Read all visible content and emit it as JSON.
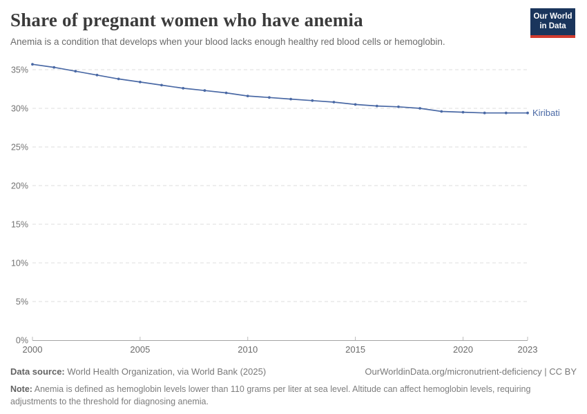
{
  "header": {
    "title": "Share of pregnant women who have anemia",
    "subtitle": "Anemia is a condition that develops when your blood lacks enough healthy red blood cells or hemoglobin.",
    "logo": {
      "line1": "Our World",
      "line2": "in Data",
      "bg_color": "#1a355c",
      "accent_color": "#d23b2f"
    }
  },
  "chart_data": {
    "type": "line",
    "title": "Share of pregnant women who have anemia",
    "x": [
      2000,
      2001,
      2002,
      2003,
      2004,
      2005,
      2006,
      2007,
      2008,
      2009,
      2010,
      2011,
      2012,
      2013,
      2014,
      2015,
      2016,
      2017,
      2018,
      2019,
      2020,
      2021,
      2022,
      2023
    ],
    "series": [
      {
        "name": "Kiribati",
        "color": "#4a69a5",
        "values": [
          35.7,
          35.3,
          34.8,
          34.3,
          33.8,
          33.4,
          33.0,
          32.6,
          32.3,
          32.0,
          31.6,
          31.4,
          31.2,
          31.0,
          30.8,
          30.5,
          30.3,
          30.2,
          30.0,
          29.6,
          29.5,
          29.4,
          29.4,
          29.4
        ]
      }
    ],
    "xlabel": "",
    "ylabel": "",
    "x_tick_years": [
      2000,
      2005,
      2010,
      2015,
      2020,
      2023
    ],
    "y_ticks": [
      0,
      5,
      10,
      15,
      20,
      25,
      30,
      35
    ],
    "y_tick_suffix": "%",
    "ylim": [
      0,
      36.5
    ],
    "xlim": [
      2000,
      2023
    ],
    "legend_position": "end-of-line",
    "grid": "horizontal-dashed",
    "grid_color": "#dcdcdc",
    "axis_color": "#a3a3a3",
    "tick_label_color": "#737373"
  },
  "footer": {
    "data_source_label": "Data source:",
    "data_source": " World Health Organization, via World Bank (2025)",
    "attribution": "OurWorldinData.org/micronutrient-deficiency | CC BY",
    "note_label": "Note:",
    "note": " Anemia is defined as hemoglobin levels lower than 110 grams per liter at sea level. Altitude can affect hemoglobin levels, requiring adjustments to the threshold for diagnosing anemia."
  }
}
